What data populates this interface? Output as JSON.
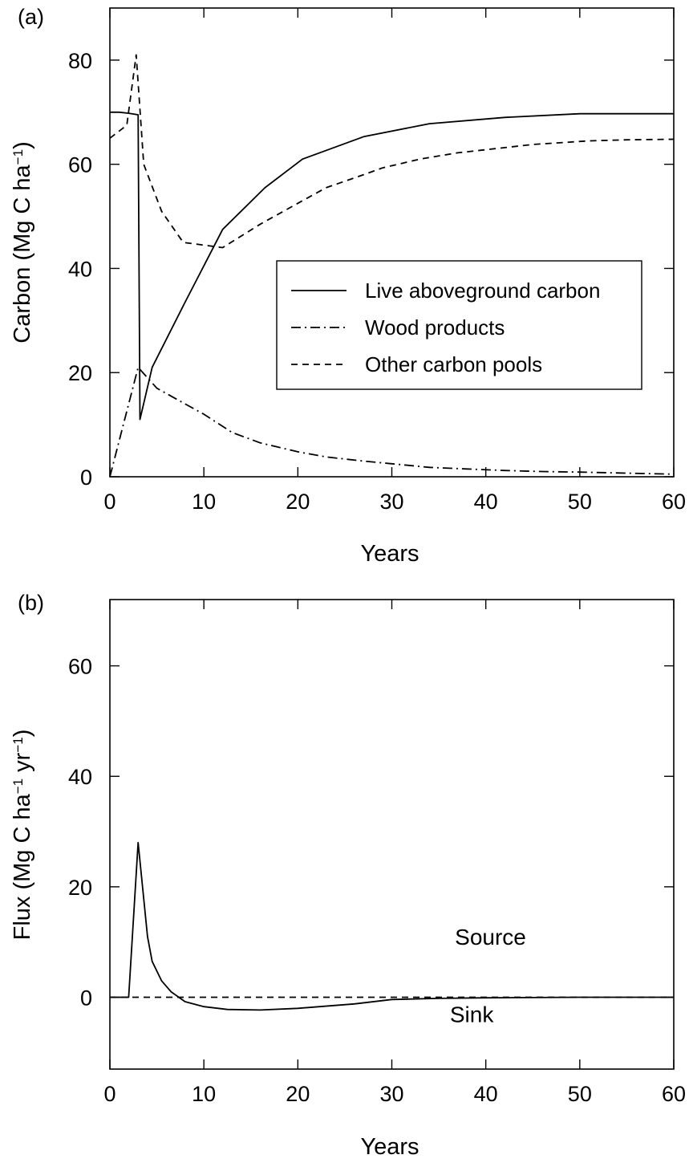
{
  "chart_data": [
    {
      "type": "line",
      "panel_label": "(a)",
      "xlabel": "Years",
      "ylabel": "Carbon (Mg C ha",
      "ylabel_sup": "−1",
      "ylabel_tail": ")",
      "xlim": [
        0,
        60
      ],
      "ylim": [
        0,
        90
      ],
      "xticks": [
        0,
        10,
        20,
        30,
        40,
        50,
        60
      ],
      "yticks": [
        0,
        20,
        40,
        60,
        80
      ],
      "grid": false,
      "legend_position": "center-right",
      "series": [
        {
          "name": "Live aboveground carbon",
          "style": "solid",
          "x": [
            0,
            1,
            2,
            3,
            3.2,
            4.5,
            8,
            12,
            16.5,
            20.5,
            27,
            34,
            42,
            50,
            60
          ],
          "y": [
            70,
            70,
            69.8,
            69.5,
            11,
            21,
            33.5,
            47.5,
            55.5,
            61,
            65.3,
            67.8,
            69,
            69.7,
            69.7
          ]
        },
        {
          "name": "Wood products",
          "style": "dash-dot",
          "x": [
            0,
            3,
            5,
            8,
            10,
            13,
            16,
            20,
            23,
            27,
            30,
            34,
            38,
            42,
            46,
            50,
            55,
            60
          ],
          "y": [
            0,
            21,
            17,
            14,
            12,
            8.5,
            6.5,
            4.8,
            3.8,
            3,
            2.5,
            1.8,
            1.5,
            1.2,
            1,
            0.9,
            0.7,
            0.5
          ]
        },
        {
          "name": "Other carbon pools",
          "style": "dashed",
          "x": [
            0,
            1.8,
            2.8,
            3.6,
            5.5,
            7.8,
            12,
            16,
            20,
            23,
            27,
            29,
            33,
            37,
            41,
            45,
            51,
            55,
            60
          ],
          "y": [
            65,
            67.5,
            81,
            60,
            51,
            45,
            44,
            48.5,
            52.5,
            55.5,
            58,
            59.3,
            61,
            62.2,
            63,
            63.8,
            64.5,
            64.7,
            64.8
          ]
        }
      ]
    },
    {
      "type": "line",
      "panel_label": "(b)",
      "xlabel": "Years",
      "ylabel": "Flux (Mg C ha",
      "ylabel_sup1": "−1",
      "ylabel_mid": " yr",
      "ylabel_sup2": "−1",
      "ylabel_tail": ")",
      "xlim": [
        0,
        60
      ],
      "ylim": [
        -13,
        72
      ],
      "xticks": [
        0,
        10,
        20,
        30,
        40,
        50,
        60
      ],
      "yticks": [
        0,
        20,
        40,
        60
      ],
      "grid": false,
      "annotations": [
        {
          "text": "Source",
          "x": 40.5,
          "y": 9.5
        },
        {
          "text": "Sink",
          "x": 38.5,
          "y": -4.5
        }
      ],
      "series": [
        {
          "name": "",
          "style": "solid",
          "x": [
            0,
            2,
            3,
            4,
            4.5,
            5.5,
            6.5,
            8,
            10,
            12.5,
            16,
            20,
            26,
            30,
            35,
            40,
            50,
            60
          ],
          "y": [
            0,
            0,
            28,
            11,
            6.5,
            3,
            1,
            -0.8,
            -1.7,
            -2.2,
            -2.3,
            -2,
            -1.2,
            -0.4,
            -0.2,
            -0.1,
            0,
            0
          ]
        },
        {
          "name": "",
          "style": "dashed",
          "x": [
            0,
            60
          ],
          "y": [
            0,
            0
          ]
        }
      ]
    }
  ]
}
